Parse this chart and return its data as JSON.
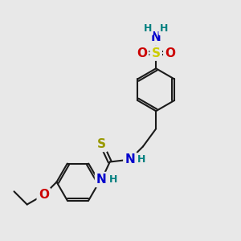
{
  "background_color": "#e8e8e8",
  "atom_colors": {
    "C": "#1a1a1a",
    "N": "#0000cc",
    "O": "#cc0000",
    "S_sulfonamide": "#cccc00",
    "S_thio": "#999900",
    "H": "#008080"
  },
  "bond_color": "#1a1a1a",
  "bond_width": 1.5,
  "font_size_atoms": 11,
  "font_size_h": 9,
  "xlim": [
    0,
    10
  ],
  "ylim": [
    0,
    10
  ]
}
